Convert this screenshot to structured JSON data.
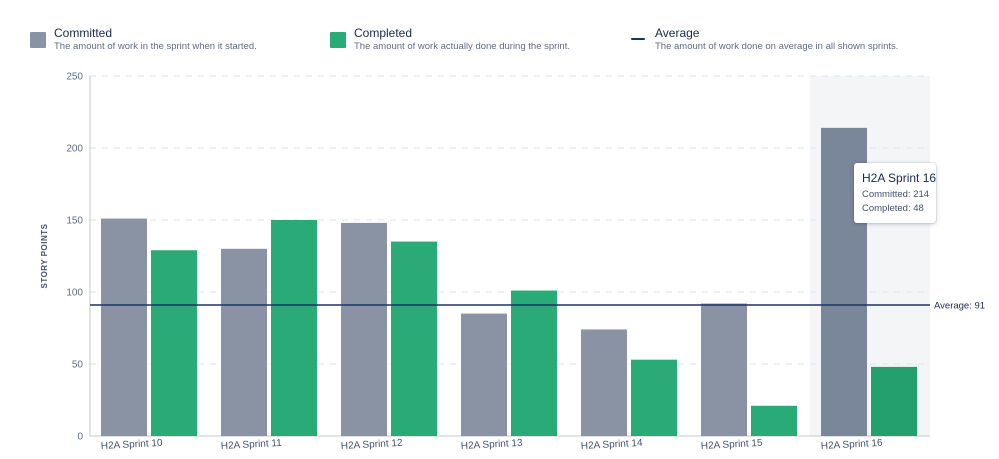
{
  "legend": {
    "committed": {
      "label": "Committed",
      "description": "The amount of work in the sprint when it started."
    },
    "completed": {
      "label": "Completed",
      "description": "The amount of work actually done during the sprint."
    },
    "average": {
      "label": "Average",
      "description": "The amount of work done on average in all shown sprints."
    }
  },
  "colors": {
    "committed": "#8993a4",
    "committed_highlight": "#7a869a",
    "completed": "#2aaa76",
    "completed_highlight": "#23a06c",
    "average_line": "#1d3461",
    "grid": "#dfe1e6",
    "highlight_band": "#f4f5f7"
  },
  "tooltip": {
    "title": "H2A Sprint 16",
    "committed_text": "Committed: 214",
    "completed_text": "Completed: 48"
  },
  "chart_data": {
    "type": "bar",
    "ylabel": "STORY POINTS",
    "ylim": [
      0,
      250
    ],
    "yticks": [
      0,
      50,
      100,
      150,
      200,
      250
    ],
    "grid": true,
    "legend_position": "top",
    "categories": [
      "H2A Sprint 10",
      "H2A Sprint 11",
      "H2A Sprint 12",
      "H2A Sprint 13",
      "H2A Sprint 14",
      "H2A Sprint 15",
      "H2A Sprint 16"
    ],
    "series": [
      {
        "name": "Committed",
        "values": [
          151,
          130,
          148,
          85,
          74,
          92,
          214
        ]
      },
      {
        "name": "Completed",
        "values": [
          129,
          150,
          135,
          101,
          53,
          21,
          48
        ]
      }
    ],
    "average": 91,
    "average_label": "Average: 91",
    "highlighted_category": "H2A Sprint 16"
  }
}
